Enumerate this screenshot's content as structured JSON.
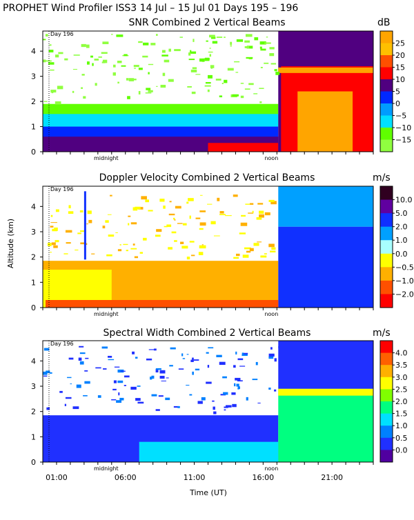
{
  "header": {
    "title": "PROPHET Wind Profiler ISS3  14 Jul – 15 Jul 01 Days 195 – 196"
  },
  "axes": {
    "ylabel": "Altitude (km)",
    "xlabel": "Time (UT)",
    "yticks": [
      "0",
      "1",
      "2",
      "3",
      "4"
    ],
    "xticks": [
      "01:00",
      "06:00",
      "11:00",
      "16:00",
      "21:00"
    ],
    "xtick_hours": [
      1,
      6,
      11,
      16,
      21
    ],
    "x_range_hours": [
      0,
      24
    ],
    "y_range_km": [
      0,
      4.8
    ],
    "day_label": "Day 196",
    "midnight_label": "midnight",
    "noon_label": "noon"
  },
  "chart_data": [
    {
      "type": "heatmap",
      "title": "SNR Combined 2 Vertical Beams",
      "units": "dB",
      "colorbar_labels": [
        "25",
        "20",
        "15",
        "10",
        "5",
        "0",
        "−5",
        "−10",
        "−15"
      ],
      "colorbar_colors": [
        "#ffa500",
        "#ffc000",
        "#ff5000",
        "#ff0000",
        "#500080",
        "#0028ff",
        "#009cff",
        "#00e0ff",
        "#60ff00",
        "#90ff40"
      ],
      "xlabel": "Time (UT)",
      "ylabel": "Altitude (km)"
    },
    {
      "type": "heatmap",
      "title": "Doppler Velocity Combined 2 Vertical Beams",
      "units": "m/s",
      "colorbar_labels": [
        "10.0",
        "5.0",
        "2.0",
        "1.0",
        "0.0",
        "−0.5",
        "−1.0",
        "−2.0"
      ],
      "colorbar_colors": [
        "#300020",
        "#6000a0",
        "#1030ff",
        "#00a0ff",
        "#a8ffff",
        "#ffff00",
        "#ffb000",
        "#ff5000",
        "#ff0000"
      ],
      "xlabel": "Time (UT)",
      "ylabel": "Altitude (km)"
    },
    {
      "type": "heatmap",
      "title": "Spectral Width Combined 2 Vertical Beams",
      "units": "m/s",
      "colorbar_labels": [
        "4.0",
        "3.5",
        "3.0",
        "2.5",
        "2.0",
        "1.5",
        "1.0",
        "0.5",
        "0.0"
      ],
      "colorbar_colors": [
        "#ff0000",
        "#ff6000",
        "#ffb000",
        "#ffff00",
        "#80ff00",
        "#00ff80",
        "#00e0ff",
        "#0080ff",
        "#2030ff",
        "#5000a0"
      ],
      "xlabel": "Time (UT)",
      "ylabel": "Altitude (km)"
    }
  ]
}
